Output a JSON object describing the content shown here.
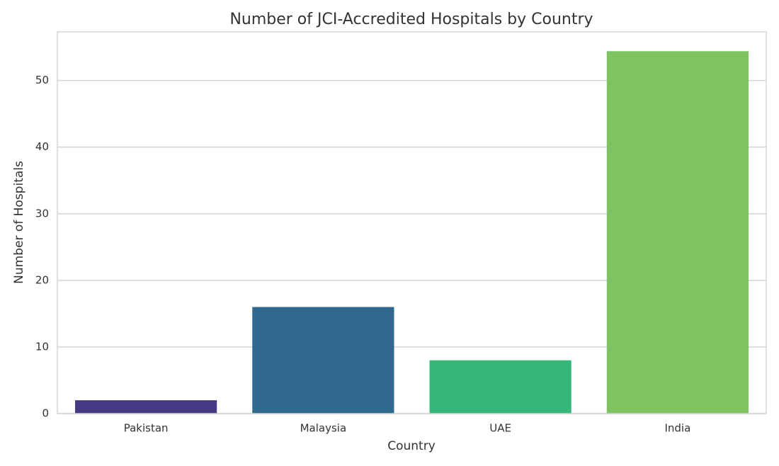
{
  "chart_data": {
    "type": "bar",
    "title": "Number of JCI-Accredited Hospitals by Country",
    "x_label": "Country",
    "y_label": "Number of Hospitals",
    "categories": [
      "Pakistan",
      "Malaysia",
      "UAE",
      "India"
    ],
    "values": [
      2,
      16,
      8,
      54.4
    ],
    "colors": [
      "#443983",
      "#31688e",
      "#35b779",
      "#7ec35f"
    ],
    "ylim": [
      0,
      57.3
    ],
    "yticks": [
      0,
      10,
      20,
      30,
      40,
      50
    ],
    "grid": true
  }
}
